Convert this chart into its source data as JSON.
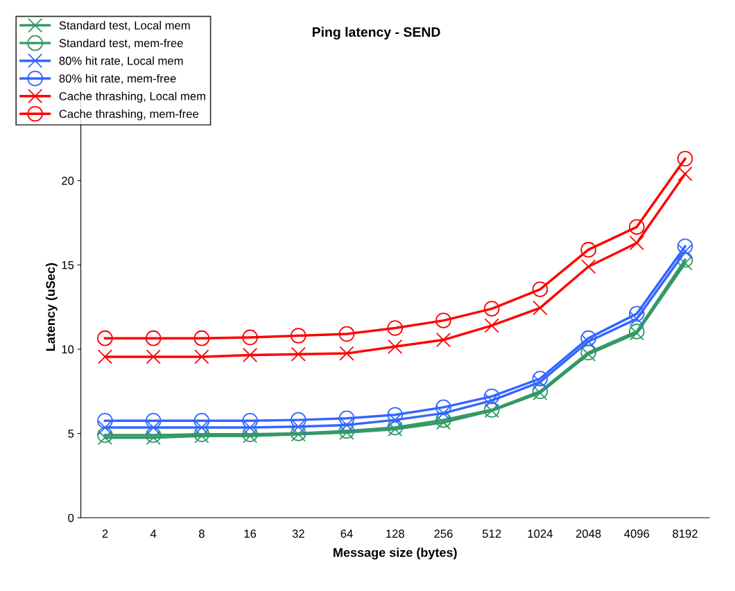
{
  "chart_data": {
    "type": "line",
    "title": "Ping latency - SEND",
    "xlabel": "Message size (bytes)",
    "ylabel": "Latency (uSec)",
    "categories": [
      "2",
      "4",
      "8",
      "16",
      "32",
      "64",
      "128",
      "256",
      "512",
      "1024",
      "2048",
      "4096",
      "8192"
    ],
    "series": [
      {
        "name": "Standard test, Local mem",
        "color": "#339966",
        "marker": "cross",
        "values": [
          4.75,
          4.75,
          4.85,
          4.85,
          4.95,
          5.05,
          5.25,
          5.65,
          6.35,
          7.4,
          9.7,
          10.95,
          15.1
        ]
      },
      {
        "name": "Standard test, mem-free",
        "color": "#339966",
        "marker": "circle",
        "values": [
          4.9,
          4.9,
          4.95,
          4.95,
          5.0,
          5.15,
          5.35,
          5.8,
          6.4,
          7.5,
          9.8,
          11.05,
          15.3
        ]
      },
      {
        "name": "80% hit rate, Local mem",
        "color": "#3366ff",
        "marker": "cross",
        "values": [
          5.35,
          5.35,
          5.35,
          5.35,
          5.4,
          5.5,
          5.8,
          6.2,
          6.95,
          8.05,
          10.45,
          11.8,
          15.8
        ]
      },
      {
        "name": "80% hit rate, mem-free",
        "color": "#3366ff",
        "marker": "circle",
        "values": [
          5.75,
          5.75,
          5.75,
          5.75,
          5.8,
          5.9,
          6.1,
          6.55,
          7.2,
          8.25,
          10.65,
          12.1,
          16.1
        ]
      },
      {
        "name": "Cache thrashing, Local mem",
        "color": "#ff0000",
        "marker": "cross",
        "values": [
          9.55,
          9.55,
          9.55,
          9.65,
          9.7,
          9.75,
          10.15,
          10.55,
          11.4,
          12.45,
          14.9,
          16.3,
          20.4
        ]
      },
      {
        "name": "Cache thrashing, mem-free",
        "color": "#ff0000",
        "marker": "circle",
        "values": [
          10.65,
          10.65,
          10.65,
          10.7,
          10.8,
          10.9,
          11.25,
          11.7,
          12.4,
          13.55,
          15.9,
          17.25,
          21.3
        ]
      }
    ],
    "ylim": [
      0,
      25
    ],
    "yticks": [
      0,
      5,
      10,
      15,
      20
    ],
    "grid": false,
    "legend": "top left",
    "line_style": "solid"
  }
}
